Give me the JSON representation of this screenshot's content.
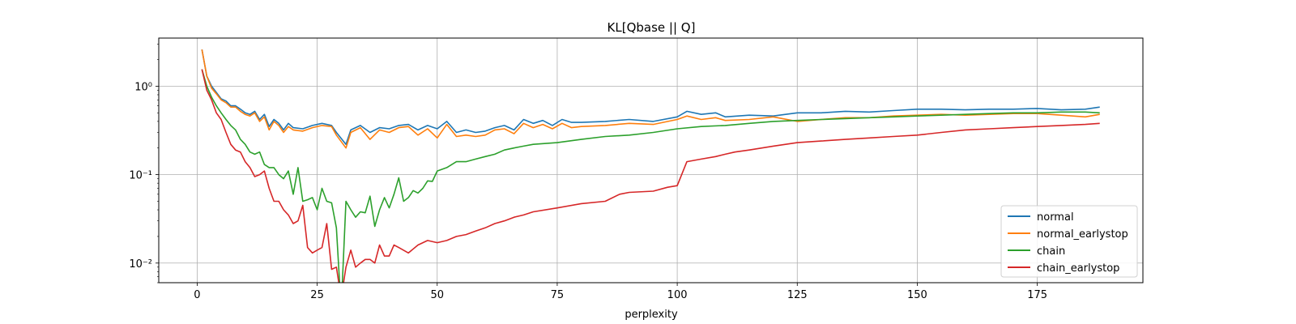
{
  "chart_data": {
    "type": "line",
    "title": "KL[Qbase || Q]",
    "xlabel": "perplexity",
    "ylabel": "",
    "yscale": "log",
    "xlim": [
      -8,
      197
    ],
    "ylim": [
      0.006,
      3.5
    ],
    "xticks": [
      0,
      25,
      50,
      75,
      100,
      125,
      150,
      175
    ],
    "xtick_labels": [
      "0",
      "25",
      "50",
      "75",
      "100",
      "125",
      "150",
      "175"
    ],
    "yticks": [
      0.01,
      0.1,
      1
    ],
    "ytick_labels": [
      "10⁻²",
      "10⁻¹",
      "10⁰"
    ],
    "grid": true,
    "legend_position": "lower-right",
    "series": [
      {
        "name": "normal",
        "color": "#1f77b4",
        "x": [
          1,
          2,
          3,
          4,
          5,
          6,
          7,
          8,
          9,
          10,
          11,
          12,
          13,
          14,
          15,
          16,
          17,
          18,
          19,
          20,
          22,
          24,
          26,
          28,
          29,
          31,
          32,
          34,
          36,
          38,
          40,
          42,
          44,
          46,
          48,
          50,
          52,
          54,
          56,
          58,
          60,
          62,
          64,
          66,
          68,
          70,
          72,
          74,
          76,
          78,
          80,
          85,
          90,
          95,
          100,
          102,
          105,
          108,
          110,
          115,
          120,
          125,
          130,
          135,
          140,
          145,
          150,
          155,
          160,
          165,
          170,
          175,
          180,
          185,
          188
        ],
        "y": [
          2.6,
          1.3,
          1.0,
          0.85,
          0.72,
          0.68,
          0.6,
          0.6,
          0.55,
          0.5,
          0.48,
          0.52,
          0.42,
          0.48,
          0.35,
          0.42,
          0.38,
          0.32,
          0.38,
          0.34,
          0.33,
          0.36,
          0.38,
          0.36,
          0.3,
          0.22,
          0.32,
          0.36,
          0.3,
          0.34,
          0.33,
          0.36,
          0.37,
          0.32,
          0.36,
          0.33,
          0.4,
          0.3,
          0.32,
          0.3,
          0.31,
          0.34,
          0.36,
          0.32,
          0.42,
          0.38,
          0.41,
          0.36,
          0.42,
          0.39,
          0.39,
          0.4,
          0.42,
          0.4,
          0.45,
          0.52,
          0.48,
          0.5,
          0.45,
          0.47,
          0.46,
          0.5,
          0.5,
          0.52,
          0.51,
          0.53,
          0.55,
          0.55,
          0.54,
          0.55,
          0.55,
          0.56,
          0.54,
          0.55,
          0.58
        ]
      },
      {
        "name": "normal_earlystop",
        "color": "#ff7f0e",
        "x": [
          1,
          2,
          3,
          4,
          5,
          6,
          7,
          8,
          9,
          10,
          11,
          12,
          13,
          14,
          15,
          16,
          17,
          18,
          19,
          20,
          22,
          24,
          26,
          28,
          29,
          31,
          32,
          34,
          36,
          38,
          40,
          42,
          44,
          46,
          48,
          50,
          52,
          54,
          56,
          58,
          60,
          62,
          64,
          66,
          68,
          70,
          72,
          74,
          76,
          78,
          80,
          85,
          90,
          95,
          100,
          102,
          105,
          108,
          110,
          115,
          120,
          125,
          130,
          135,
          140,
          145,
          150,
          155,
          160,
          165,
          170,
          175,
          180,
          185,
          188
        ],
        "y": [
          2.6,
          1.3,
          0.95,
          0.82,
          0.7,
          0.65,
          0.58,
          0.58,
          0.52,
          0.48,
          0.46,
          0.5,
          0.4,
          0.45,
          0.32,
          0.4,
          0.36,
          0.3,
          0.35,
          0.32,
          0.31,
          0.34,
          0.36,
          0.35,
          0.28,
          0.2,
          0.3,
          0.34,
          0.25,
          0.32,
          0.3,
          0.34,
          0.35,
          0.28,
          0.33,
          0.26,
          0.37,
          0.27,
          0.28,
          0.27,
          0.28,
          0.32,
          0.33,
          0.29,
          0.38,
          0.34,
          0.37,
          0.33,
          0.38,
          0.34,
          0.35,
          0.36,
          0.38,
          0.37,
          0.42,
          0.46,
          0.42,
          0.44,
          0.41,
          0.42,
          0.45,
          0.4,
          0.42,
          0.44,
          0.44,
          0.46,
          0.47,
          0.48,
          0.47,
          0.48,
          0.49,
          0.49,
          0.47,
          0.45,
          0.48
        ]
      },
      {
        "name": "chain",
        "color": "#2ca02c",
        "x": [
          1,
          2,
          3,
          4,
          5,
          6,
          7,
          8,
          9,
          10,
          11,
          12,
          13,
          14,
          15,
          16,
          17,
          18,
          19,
          20,
          21,
          22,
          23,
          24,
          25,
          26,
          27,
          28,
          29,
          30,
          31,
          32,
          33,
          34,
          35,
          36,
          37,
          38,
          39,
          40,
          41,
          42,
          43,
          44,
          45,
          46,
          47,
          48,
          49,
          50,
          52,
          54,
          56,
          58,
          60,
          62,
          64,
          66,
          68,
          70,
          75,
          80,
          85,
          90,
          95,
          100,
          105,
          110,
          115,
          120,
          125,
          130,
          135,
          140,
          145,
          150,
          155,
          160,
          165,
          170,
          175,
          180,
          185,
          188
        ],
        "y": [
          1.55,
          1.0,
          0.75,
          0.6,
          0.5,
          0.42,
          0.36,
          0.32,
          0.25,
          0.22,
          0.18,
          0.17,
          0.18,
          0.13,
          0.12,
          0.12,
          0.1,
          0.09,
          0.11,
          0.06,
          0.12,
          0.05,
          0.052,
          0.055,
          0.04,
          0.07,
          0.05,
          0.048,
          0.025,
          0.003,
          0.05,
          0.04,
          0.033,
          0.038,
          0.037,
          0.057,
          0.026,
          0.04,
          0.055,
          0.042,
          0.06,
          0.092,
          0.05,
          0.055,
          0.066,
          0.062,
          0.07,
          0.085,
          0.084,
          0.11,
          0.12,
          0.14,
          0.14,
          0.15,
          0.16,
          0.17,
          0.19,
          0.2,
          0.21,
          0.22,
          0.23,
          0.25,
          0.27,
          0.28,
          0.3,
          0.33,
          0.35,
          0.36,
          0.38,
          0.4,
          0.41,
          0.42,
          0.43,
          0.44,
          0.45,
          0.46,
          0.47,
          0.48,
          0.49,
          0.5,
          0.5,
          0.51,
          0.51,
          0.5
        ]
      },
      {
        "name": "chain_earlystop",
        "color": "#d62728",
        "x": [
          1,
          2,
          3,
          4,
          5,
          6,
          7,
          8,
          9,
          10,
          11,
          12,
          13,
          14,
          15,
          16,
          17,
          18,
          19,
          20,
          21,
          22,
          23,
          24,
          25,
          26,
          27,
          28,
          29,
          30,
          31,
          32,
          33,
          34,
          35,
          36,
          37,
          38,
          39,
          40,
          41,
          42,
          44,
          46,
          48,
          50,
          52,
          54,
          56,
          58,
          60,
          62,
          64,
          66,
          68,
          70,
          75,
          80,
          85,
          88,
          90,
          95,
          98,
          100,
          102,
          105,
          108,
          110,
          112,
          115,
          120,
          125,
          130,
          135,
          140,
          145,
          150,
          155,
          160,
          165,
          170,
          175,
          180,
          185,
          188
        ],
        "y": [
          1.55,
          0.9,
          0.7,
          0.5,
          0.42,
          0.3,
          0.22,
          0.19,
          0.18,
          0.14,
          0.12,
          0.095,
          0.1,
          0.11,
          0.07,
          0.05,
          0.05,
          0.04,
          0.035,
          0.028,
          0.03,
          0.045,
          0.015,
          0.013,
          0.014,
          0.015,
          0.028,
          0.0085,
          0.009,
          0.004,
          0.009,
          0.014,
          0.009,
          0.01,
          0.011,
          0.011,
          0.01,
          0.016,
          0.012,
          0.012,
          0.016,
          0.015,
          0.013,
          0.016,
          0.018,
          0.017,
          0.018,
          0.02,
          0.021,
          0.023,
          0.025,
          0.028,
          0.03,
          0.033,
          0.035,
          0.038,
          0.042,
          0.047,
          0.05,
          0.06,
          0.063,
          0.065,
          0.072,
          0.075,
          0.14,
          0.15,
          0.16,
          0.17,
          0.18,
          0.19,
          0.21,
          0.23,
          0.24,
          0.25,
          0.26,
          0.27,
          0.28,
          0.3,
          0.32,
          0.33,
          0.34,
          0.35,
          0.36,
          0.37,
          0.38
        ]
      }
    ]
  }
}
